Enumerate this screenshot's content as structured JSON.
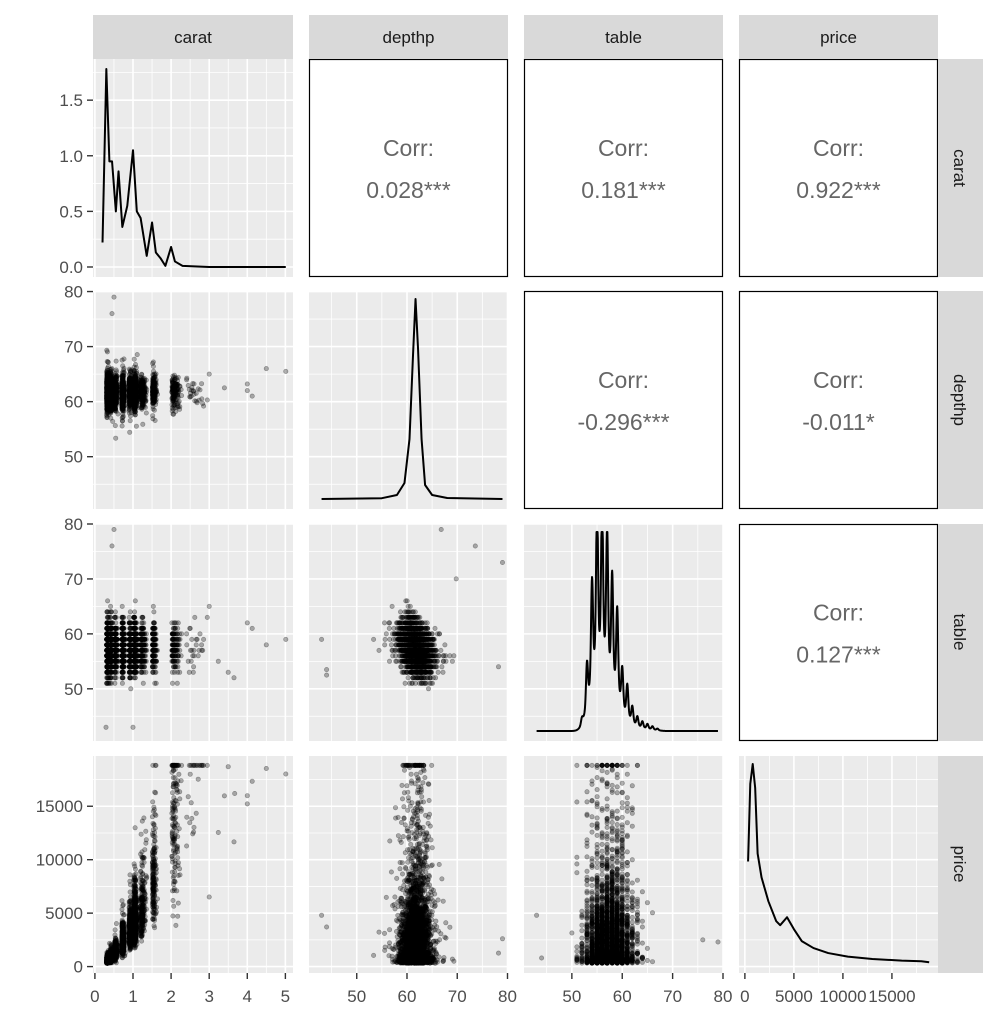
{
  "chart_data": {
    "type": "scatter",
    "layout": "pairs-matrix",
    "variables": [
      "carat",
      "depthp",
      "table",
      "price"
    ],
    "colors": {
      "panel_bg": "#EBEBEB",
      "grid": "#FFFFFF",
      "strip_bg": "#D9D9D9",
      "points": "#000000",
      "corr_text": "#666666"
    },
    "point_alpha": 0.3,
    "grid": true,
    "axes": {
      "carat": {
        "range": [
          -0.05,
          5.2
        ],
        "ticks": [
          0,
          1,
          2,
          3,
          4,
          5
        ],
        "tick_labels": [
          "0",
          "1",
          "2",
          "3",
          "4",
          "5"
        ]
      },
      "depthp": {
        "range": [
          40.5,
          80.1
        ],
        "ticks": [
          50,
          60,
          70,
          80
        ],
        "tick_labels": [
          "50",
          "60",
          "70",
          "80"
        ]
      },
      "table": {
        "range": [
          40.5,
          80.0
        ],
        "ticks": [
          50,
          60,
          70,
          80
        ],
        "tick_labels": [
          "50",
          "60",
          "70",
          "80"
        ]
      },
      "price": {
        "range": [
          -600,
          19700
        ],
        "ticks": [
          0,
          5000,
          10000,
          15000
        ],
        "tick_labels": [
          "0",
          "5000",
          "10000",
          "15000"
        ]
      },
      "carat_density": {
        "range": [
          -0.09,
          1.87
        ],
        "ticks": [
          0,
          0.5,
          1.0,
          1.5
        ],
        "tick_labels": [
          "0.0",
          "0.5",
          "1.0",
          "1.5"
        ]
      }
    },
    "correlations": [
      {
        "row": "carat",
        "col": "depthp",
        "label": "Corr:",
        "value": "0.028***"
      },
      {
        "row": "carat",
        "col": "table",
        "label": "Corr:",
        "value": "0.181***"
      },
      {
        "row": "carat",
        "col": "price",
        "label": "Corr:",
        "value": "0.922***"
      },
      {
        "row": "depthp",
        "col": "table",
        "label": "Corr:",
        "value": "-0.296***"
      },
      {
        "row": "depthp",
        "col": "price",
        "label": "Corr:",
        "value": "-0.011*"
      },
      {
        "row": "table",
        "col": "price",
        "label": "Corr:",
        "value": "0.127***"
      }
    ],
    "densities": {
      "carat": [
        [
          0.2,
          0.22
        ],
        [
          0.3,
          1.78
        ],
        [
          0.38,
          0.95
        ],
        [
          0.45,
          0.95
        ],
        [
          0.55,
          0.5
        ],
        [
          0.62,
          0.86
        ],
        [
          0.72,
          0.36
        ],
        [
          0.85,
          0.55
        ],
        [
          1.0,
          1.05
        ],
        [
          1.1,
          0.5
        ],
        [
          1.2,
          0.44
        ],
        [
          1.36,
          0.1
        ],
        [
          1.5,
          0.4
        ],
        [
          1.6,
          0.13
        ],
        [
          1.72,
          0.08
        ],
        [
          1.85,
          0.01
        ],
        [
          2.0,
          0.18
        ],
        [
          2.1,
          0.05
        ],
        [
          2.3,
          0.01
        ],
        [
          3.0,
          0.0
        ],
        [
          5.01,
          0.0
        ]
      ],
      "depthp": [
        [
          43,
          0
        ],
        [
          55,
          0.004
        ],
        [
          58,
          0.02
        ],
        [
          59.5,
          0.08
        ],
        [
          60.5,
          0.3
        ],
        [
          61.2,
          0.72
        ],
        [
          61.7,
          1.0
        ],
        [
          62.2,
          0.75
        ],
        [
          62.9,
          0.3
        ],
        [
          63.6,
          0.07
        ],
        [
          65,
          0.02
        ],
        [
          68,
          0.005
        ],
        [
          79,
          0
        ]
      ],
      "table_peaks": [
        [
          52,
          0.04
        ],
        [
          53,
          0.28
        ],
        [
          54,
          0.64
        ],
        [
          55,
          1.0
        ],
        [
          56,
          0.98
        ],
        [
          57,
          0.86
        ],
        [
          58,
          0.66
        ],
        [
          59,
          0.53
        ],
        [
          60,
          0.25
        ],
        [
          61,
          0.2
        ],
        [
          62,
          0.1
        ],
        [
          63,
          0.06
        ],
        [
          64,
          0.04
        ],
        [
          65,
          0.03
        ],
        [
          66,
          0.02
        ],
        [
          67,
          0.01
        ]
      ],
      "price": [
        [
          326,
          0.51
        ],
        [
          550,
          0.9
        ],
        [
          800,
          1.0
        ],
        [
          1050,
          0.88
        ],
        [
          1300,
          0.55
        ],
        [
          1700,
          0.43
        ],
        [
          2400,
          0.31
        ],
        [
          3200,
          0.21
        ],
        [
          3600,
          0.19
        ],
        [
          4300,
          0.23
        ],
        [
          5000,
          0.17
        ],
        [
          5800,
          0.11
        ],
        [
          7000,
          0.075
        ],
        [
          8500,
          0.05
        ],
        [
          10500,
          0.032
        ],
        [
          13000,
          0.02
        ],
        [
          16000,
          0.012
        ],
        [
          18000,
          0.009
        ],
        [
          18800,
          0.004
        ]
      ]
    },
    "outliers": {
      "carat_depthp": [
        [
          0.5,
          79
        ],
        [
          0.45,
          76
        ],
        [
          3.0,
          65
        ],
        [
          4.0,
          62
        ],
        [
          4.13,
          61
        ],
        [
          4.5,
          66
        ],
        [
          5.01,
          65.5
        ],
        [
          3.4,
          62.5
        ],
        [
          4.0,
          63.2
        ]
      ],
      "carat_table": [
        [
          0.5,
          79
        ],
        [
          0.45,
          76
        ],
        [
          0.29,
          43
        ],
        [
          1.0,
          43
        ],
        [
          3.0,
          65
        ],
        [
          4.0,
          62
        ],
        [
          4.13,
          61
        ],
        [
          5.01,
          59
        ],
        [
          4.5,
          58
        ],
        [
          3.65,
          52
        ],
        [
          3.5,
          53
        ],
        [
          3.24,
          55
        ]
      ],
      "carat_price": [
        [
          5.01,
          18018
        ],
        [
          4.5,
          18531
        ],
        [
          3.5,
          18701
        ],
        [
          4.0,
          15223
        ],
        [
          4.0,
          15984
        ],
        [
          3.67,
          16193
        ],
        [
          3.4,
          15964
        ],
        [
          4.13,
          17329
        ],
        [
          3.65,
          11668
        ],
        [
          3.24,
          12545
        ],
        [
          3.0,
          6512
        ]
      ],
      "depthp_table": [
        [
          43,
          59
        ],
        [
          44,
          53.5
        ],
        [
          44,
          52.5
        ],
        [
          79,
          73
        ],
        [
          73.6,
          76
        ],
        [
          66.8,
          79
        ],
        [
          69.8,
          70
        ],
        [
          78.2,
          54
        ]
      ],
      "depthp_price": [
        [
          43,
          4800
        ],
        [
          44,
          3700
        ],
        [
          79,
          2600
        ],
        [
          78.2,
          1260
        ]
      ],
      "table_price": [
        [
          43,
          4800
        ],
        [
          44,
          800
        ],
        [
          79,
          2300
        ],
        [
          76,
          2500
        ]
      ]
    }
  },
  "strips": {
    "top": [
      "carat",
      "depthp",
      "table",
      "price"
    ],
    "right": [
      "carat",
      "depthp",
      "table",
      "price"
    ]
  }
}
